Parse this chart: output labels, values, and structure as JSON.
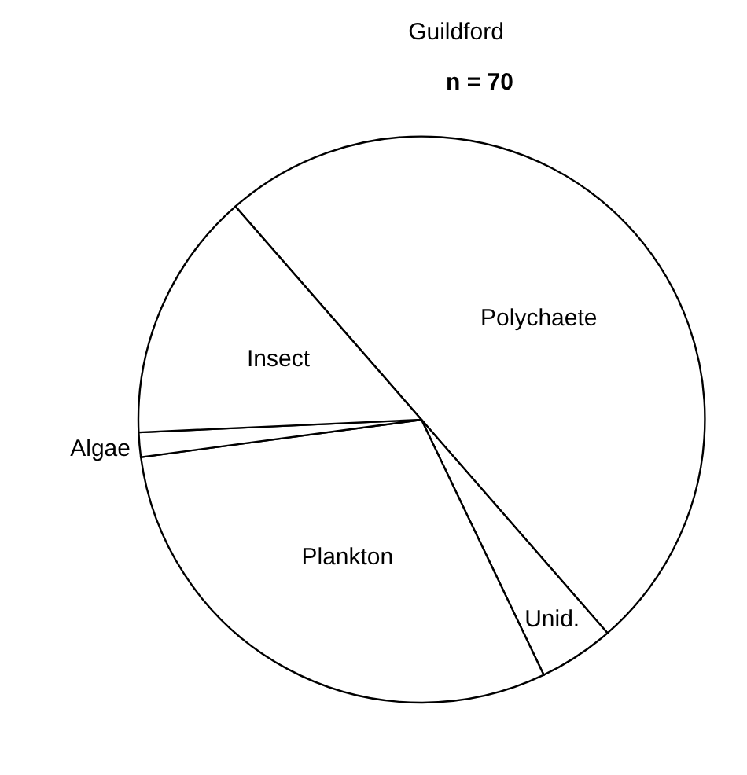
{
  "chart_data": {
    "type": "pie",
    "title": "Guildford",
    "subtitle": "n = 70",
    "categories": [
      "Polychaete",
      "Unid.",
      "Plankton",
      "Algae",
      "Insect"
    ],
    "values": [
      50,
      4.3,
      30,
      1.4,
      14.3
    ],
    "colors": [
      "#ffffff",
      "#ffffff",
      "#ffffff",
      "#ffffff",
      "#ffffff"
    ]
  }
}
